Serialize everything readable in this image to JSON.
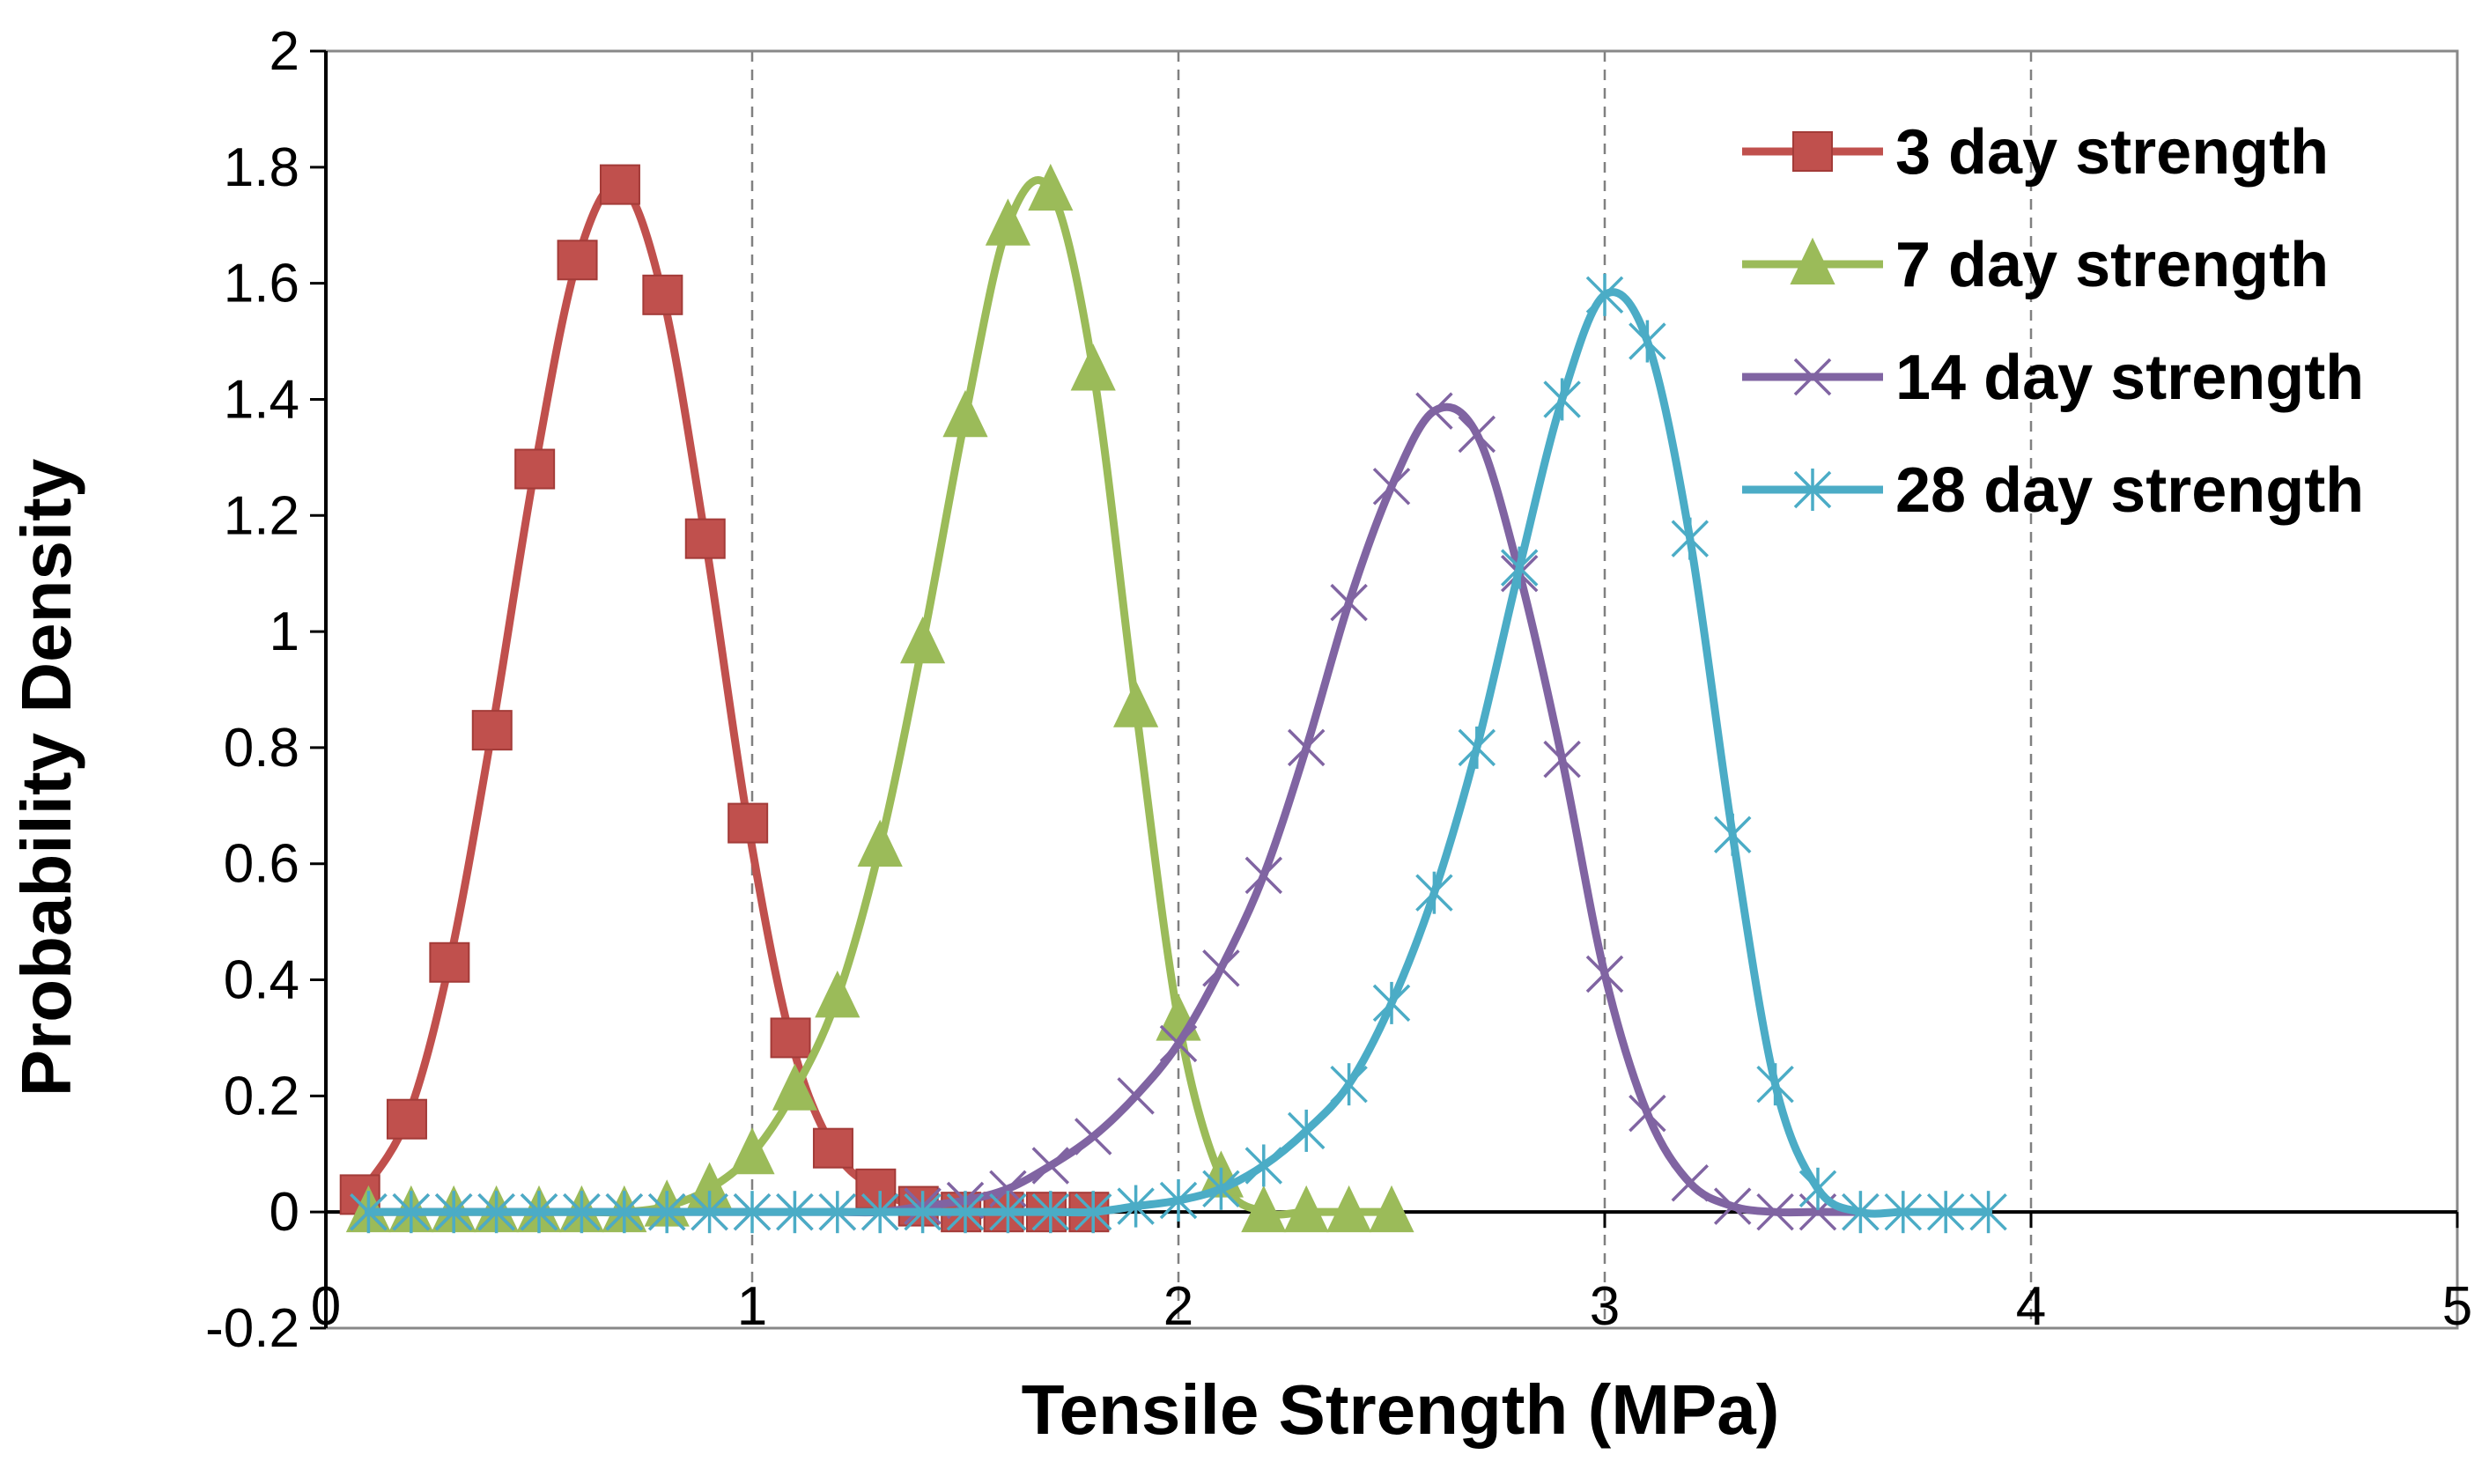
{
  "chart_data": {
    "type": "line",
    "title": "",
    "xlabel": "Tensile Strength (MPa)",
    "ylabel": "Probability Density",
    "xlim": [
      0,
      5
    ],
    "ylim": [
      -0.2,
      2
    ],
    "xticks": [
      0,
      1,
      2,
      3,
      4,
      5
    ],
    "xtick_labels": [
      "0",
      "1",
      "2",
      "3",
      "4",
      "5"
    ],
    "yticks": [
      -0.2,
      0,
      0.2,
      0.4,
      0.6,
      0.8,
      1,
      1.2,
      1.4,
      1.6,
      1.8,
      2
    ],
    "ytick_labels": [
      "-0.2",
      "0",
      "0.2",
      "0.4",
      "0.6",
      "0.8",
      "1",
      "1.2",
      "1.4",
      "1.6",
      "1.8",
      "2"
    ],
    "grid": "vertical dashed",
    "legend_position": "top-right",
    "series": [
      {
        "name": "3 day strength",
        "color": "#C0504D",
        "marker": "square",
        "x": [
          0.08,
          0.19,
          0.29,
          0.39,
          0.49,
          0.59,
          0.69,
          0.79,
          0.89,
          0.99,
          1.09,
          1.19,
          1.29,
          1.39,
          1.49,
          1.59,
          1.69,
          1.79
        ],
        "y": [
          0.03,
          0.16,
          0.43,
          0.83,
          1.28,
          1.64,
          1.77,
          1.58,
          1.16,
          0.67,
          0.3,
          0.11,
          0.04,
          0.01,
          0.0,
          0.0,
          0.0,
          0.0
        ]
      },
      {
        "name": "7 day strength",
        "color": "#9BBB59",
        "marker": "triangle",
        "x": [
          0.1,
          0.2,
          0.3,
          0.4,
          0.5,
          0.6,
          0.7,
          0.8,
          0.9,
          1.0,
          1.1,
          1.2,
          1.3,
          1.4,
          1.5,
          1.6,
          1.7,
          1.8,
          1.9,
          2.0,
          2.1,
          2.2,
          2.3,
          2.4,
          2.5
        ],
        "y": [
          0.0,
          0.0,
          0.0,
          0.0,
          0.0,
          0.0,
          0.0,
          0.01,
          0.04,
          0.1,
          0.21,
          0.37,
          0.63,
          0.98,
          1.37,
          1.7,
          1.76,
          1.45,
          0.87,
          0.33,
          0.06,
          0.0,
          0.0,
          0.0,
          0.0
        ]
      },
      {
        "name": "14 day strength",
        "color": "#8064A2",
        "marker": "x",
        "x": [
          0.1,
          0.2,
          0.3,
          0.4,
          0.5,
          0.6,
          0.7,
          0.8,
          0.9,
          1.0,
          1.1,
          1.2,
          1.3,
          1.4,
          1.5,
          1.6,
          1.7,
          1.8,
          1.9,
          2.0,
          2.1,
          2.2,
          2.3,
          2.4,
          2.5,
          2.6,
          2.7,
          2.8,
          2.9,
          3.0,
          3.1,
          3.2,
          3.3,
          3.4,
          3.5,
          3.6
        ],
        "y": [
          0.0,
          0.0,
          0.0,
          0.0,
          0.0,
          0.0,
          0.0,
          0.0,
          0.0,
          0.0,
          0.0,
          0.0,
          0.0,
          0.01,
          0.02,
          0.04,
          0.08,
          0.13,
          0.2,
          0.29,
          0.42,
          0.58,
          0.8,
          1.05,
          1.25,
          1.38,
          1.34,
          1.1,
          0.78,
          0.41,
          0.17,
          0.05,
          0.01,
          0.0,
          0.0,
          0.0
        ]
      },
      {
        "name": "28 day strength",
        "color": "#4BACC6",
        "marker": "star",
        "x": [
          0.1,
          0.2,
          0.3,
          0.4,
          0.5,
          0.6,
          0.7,
          0.8,
          0.9,
          1.0,
          1.1,
          1.2,
          1.3,
          1.4,
          1.5,
          1.6,
          1.7,
          1.8,
          1.9,
          2.0,
          2.1,
          2.2,
          2.3,
          2.4,
          2.5,
          2.6,
          2.7,
          2.8,
          2.9,
          3.0,
          3.1,
          3.2,
          3.3,
          3.4,
          3.5,
          3.6,
          3.7,
          3.8,
          3.9
        ],
        "y": [
          0.0,
          0.0,
          0.0,
          0.0,
          0.0,
          0.0,
          0.0,
          0.0,
          0.0,
          0.0,
          0.0,
          0.0,
          0.0,
          0.0,
          0.0,
          0.0,
          0.0,
          0.0,
          0.01,
          0.02,
          0.04,
          0.08,
          0.14,
          0.22,
          0.36,
          0.55,
          0.8,
          1.11,
          1.4,
          1.58,
          1.5,
          1.16,
          0.65,
          0.22,
          0.04,
          0.0,
          0.0,
          0.0,
          0.0
        ]
      }
    ]
  }
}
